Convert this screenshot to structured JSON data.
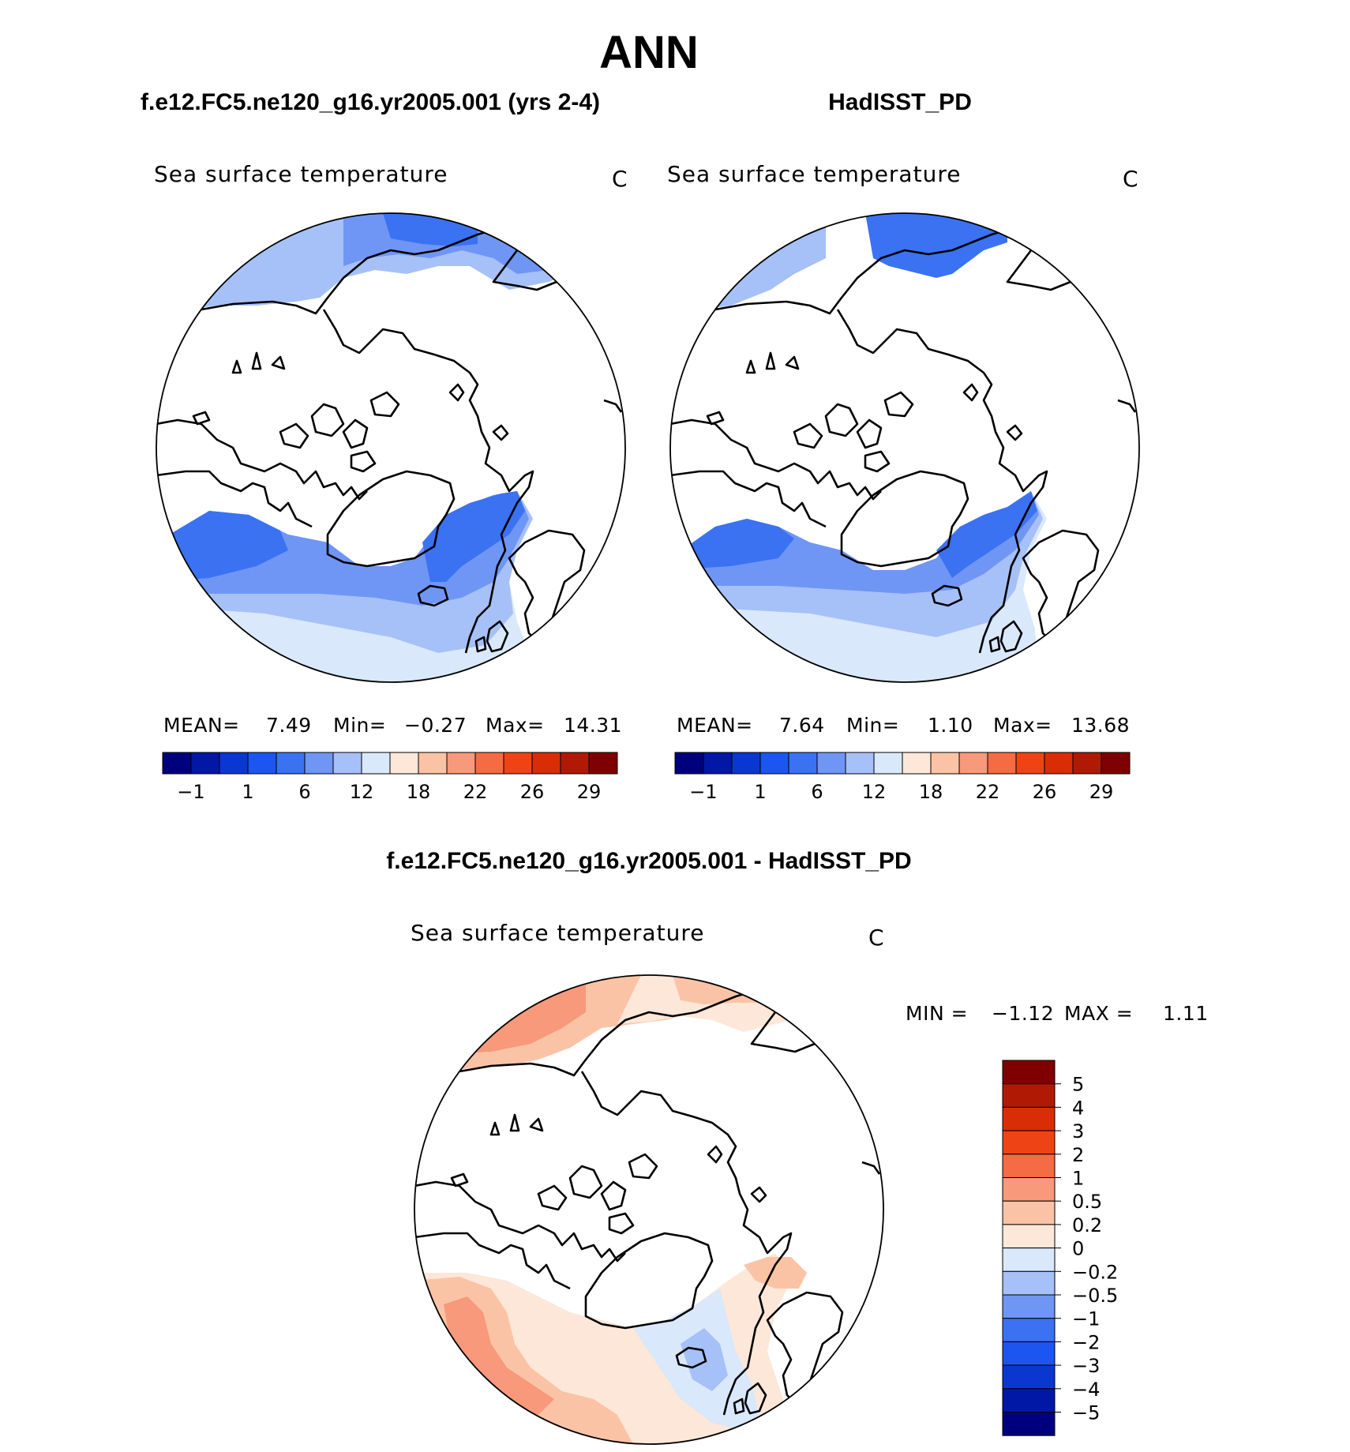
{
  "title": "ANN",
  "panels": [
    {
      "case_title": "f.e12.FC5.ne120_g16.yr2005.001 (yrs 2-4)",
      "variable": "Sea surface temperature",
      "units": "C",
      "stats": {
        "mean_label": "MEAN=",
        "mean": "7.49",
        "min_label": "Min=",
        "min": "−0.27",
        "max_label": "Max=",
        "max": "14.31"
      }
    },
    {
      "case_title": "HadISST_PD",
      "variable": "Sea surface temperature",
      "units": "C",
      "stats": {
        "mean_label": "MEAN=",
        "mean": "7.64",
        "min_label": "Min=",
        "min": "1.10",
        "max_label": "Max=",
        "max": "13.68"
      }
    },
    {
      "case_title": "f.e12.FC5.ne120_g16.yr2005.001 - HadISST_PD",
      "variable": "Sea surface temperature",
      "units": "C",
      "stats": {
        "min_label": "MIN =",
        "min": "−1.12",
        "max_label": "MAX =",
        "max": "1.11"
      }
    }
  ],
  "colorbar_field": {
    "colors": [
      "#00007f",
      "#0018a5",
      "#0a37d0",
      "#1c55f0",
      "#3a72f2",
      "#6f96f5",
      "#a6c0f8",
      "#d9e8fb",
      "#fde7d8",
      "#fbc3a5",
      "#f7997a",
      "#f46b44",
      "#ee4415",
      "#d92d06",
      "#b01a05",
      "#7f0000"
    ],
    "labels": [
      "−1",
      "1",
      "6",
      "12",
      "18",
      "22",
      "26",
      "29"
    ]
  },
  "colorbar_diff": {
    "colors": [
      "#00007f",
      "#0018a5",
      "#0a37d0",
      "#1c55f0",
      "#3a72f2",
      "#6f96f5",
      "#a6c0f8",
      "#d9e8fb",
      "#fde7d8",
      "#fbc3a5",
      "#f7997a",
      "#f46b44",
      "#ee4415",
      "#d92d06",
      "#b01a05",
      "#7f0000"
    ],
    "labels": [
      "5",
      "4",
      "3",
      "2",
      "1",
      "0.5",
      "0.2",
      "0",
      "−0.2",
      "−0.5",
      "−1",
      "−2",
      "−3",
      "−4",
      "−5"
    ]
  },
  "map_fill_colors": {
    "field_light": "#d9e8fb",
    "field_mid": "#a6c0f8",
    "field_strong": "#6f96f5",
    "field_deep": "#3a72f2",
    "diff_warm_light": "#fbc3a5",
    "diff_warm": "#f7997a",
    "diff_cool_light": "#d9e8fb",
    "diff_cool": "#a6c0f8"
  }
}
